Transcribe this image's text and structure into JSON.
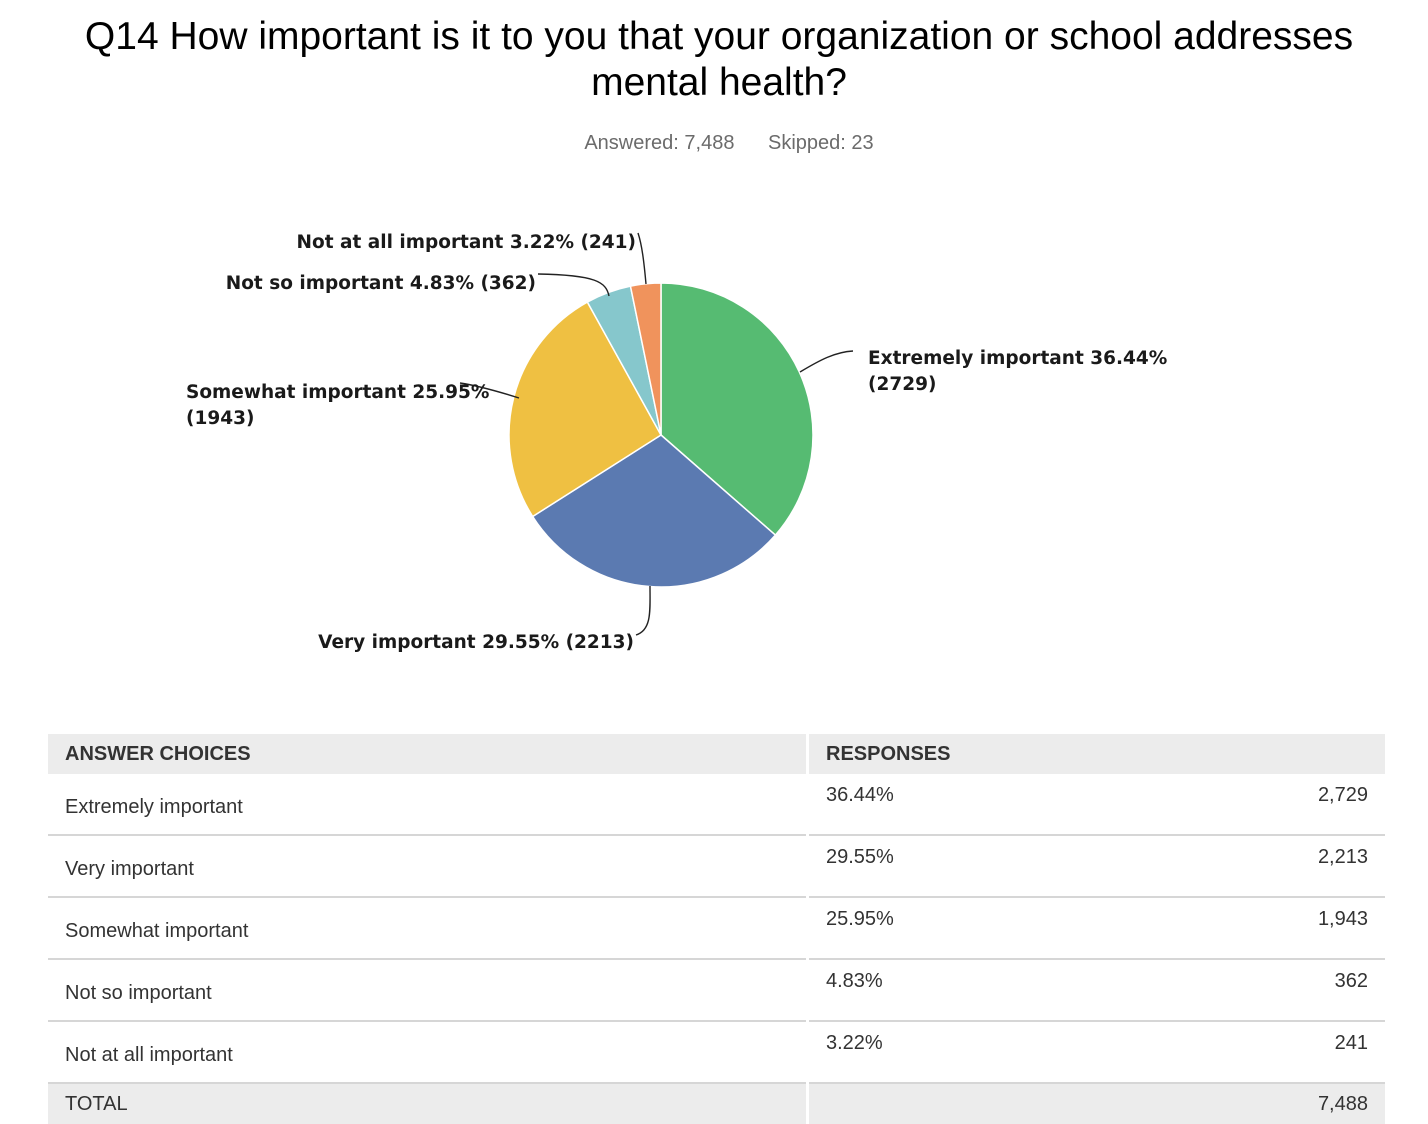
{
  "title": "Q14 How important is it to you that your organization or school addresses mental health?",
  "summary": {
    "answered": "Answered: 7,488",
    "skipped": "Skipped: 23"
  },
  "chart_data": {
    "type": "pie",
    "title": "Q14 How important is it to you that your organization or school addresses mental health?",
    "slices": [
      {
        "label": "Extremely important",
        "percent": 36.44,
        "count": 2729,
        "color": "#56bb72",
        "text": [
          "Extremely important 36.44%",
          "(2729)"
        ]
      },
      {
        "label": "Very important",
        "percent": 29.55,
        "count": 2213,
        "color": "#5b7ab1",
        "text": [
          "Very important 29.55% (2213)"
        ]
      },
      {
        "label": "Somewhat important",
        "percent": 25.95,
        "count": 1943,
        "color": "#efc042",
        "text": [
          "Somewhat important 25.95%",
          "(1943)"
        ]
      },
      {
        "label": "Not so important",
        "percent": 4.83,
        "count": 362,
        "color": "#86c7cc",
        "text": [
          "Not so important 4.83% (362)"
        ]
      },
      {
        "label": "Not at all important",
        "percent": 3.22,
        "count": 241,
        "color": "#f0935c",
        "text": [
          "Not at all important 3.22% (241)"
        ]
      }
    ]
  },
  "table": {
    "headers": [
      "ANSWER CHOICES",
      "RESPONSES"
    ],
    "rows": [
      {
        "choice": "Extremely important",
        "percent": "36.44%",
        "count": "2,729"
      },
      {
        "choice": "Very important",
        "percent": "29.55%",
        "count": "2,213"
      },
      {
        "choice": "Somewhat important",
        "percent": "25.95%",
        "count": "1,943"
      },
      {
        "choice": "Not so important",
        "percent": "4.83%",
        "count": "362"
      },
      {
        "choice": "Not at all important",
        "percent": "3.22%",
        "count": "241"
      }
    ],
    "total_label": "TOTAL",
    "total_count": "7,488"
  }
}
